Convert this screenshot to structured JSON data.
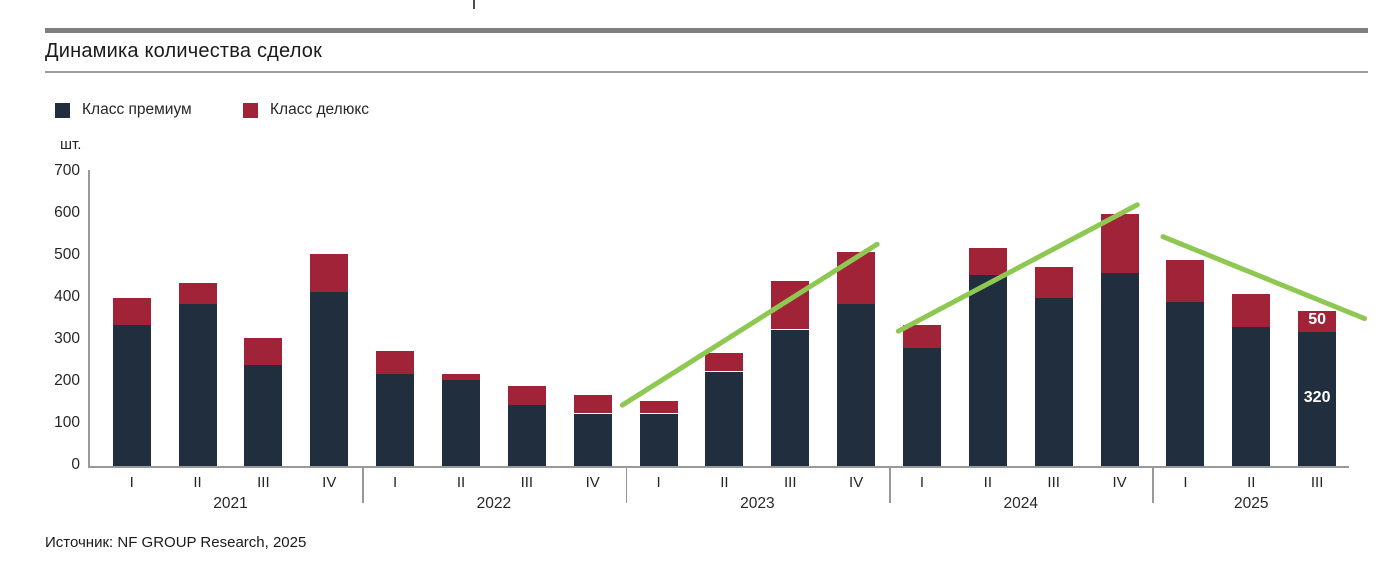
{
  "title": "Динамика количества сделок",
  "source": "Источник: NF GROUP Research, 2025",
  "colors": {
    "premium": "#202e3d",
    "deluxe": "#a12338",
    "trend": "#8ec852",
    "axis": "#999999",
    "divider_thick": "#7f7f7f",
    "divider_thin": "#9c9c9c",
    "text": "#262626"
  },
  "chart_data": {
    "type": "bar",
    "stacked": true,
    "title": "Динамика количества сделок",
    "ylabel": "шт.",
    "xlabel": "",
    "ylim": [
      0,
      700
    ],
    "yticks": [
      0,
      100,
      200,
      300,
      400,
      500,
      600,
      700
    ],
    "grid": false,
    "legend_position": "top-left",
    "series": [
      {
        "name": "Класс премиум",
        "color": "#202e3d"
      },
      {
        "name": "Класс делюкс",
        "color": "#a12338"
      }
    ],
    "groups": [
      {
        "year": "2021",
        "quarters": [
          {
            "label": "I",
            "premium": 335,
            "deluxe": 65
          },
          {
            "label": "II",
            "premium": 385,
            "deluxe": 50
          },
          {
            "label": "III",
            "premium": 240,
            "deluxe": 65
          },
          {
            "label": "IV",
            "premium": 415,
            "deluxe": 90
          }
        ]
      },
      {
        "year": "2022",
        "quarters": [
          {
            "label": "I",
            "premium": 220,
            "deluxe": 55
          },
          {
            "label": "II",
            "premium": 205,
            "deluxe": 15
          },
          {
            "label": "III",
            "premium": 145,
            "deluxe": 45
          },
          {
            "label": "IV",
            "premium": 125,
            "deluxe": 45
          }
        ]
      },
      {
        "year": "2023",
        "quarters": [
          {
            "label": "I",
            "premium": 125,
            "deluxe": 30
          },
          {
            "label": "II",
            "premium": 225,
            "deluxe": 45
          },
          {
            "label": "III",
            "premium": 325,
            "deluxe": 115
          },
          {
            "label": "IV",
            "premium": 385,
            "deluxe": 125
          }
        ]
      },
      {
        "year": "2024",
        "quarters": [
          {
            "label": "I",
            "premium": 280,
            "deluxe": 55
          },
          {
            "label": "II",
            "premium": 455,
            "deluxe": 65
          },
          {
            "label": "III",
            "premium": 400,
            "deluxe": 75
          },
          {
            "label": "IV",
            "premium": 460,
            "deluxe": 140
          }
        ]
      },
      {
        "year": "2025",
        "quarters": [
          {
            "label": "I",
            "premium": 390,
            "deluxe": 100
          },
          {
            "label": "II",
            "premium": 330,
            "deluxe": 80
          },
          {
            "label": "III",
            "premium": 320,
            "deluxe": 50,
            "premium_label": "320",
            "deluxe_label": "50"
          }
        ]
      }
    ],
    "trend_lines": [
      {
        "from": {
          "pos": 7.45,
          "value": 145
        },
        "to": {
          "pos": 11.32,
          "value": 528
        }
      },
      {
        "from": {
          "pos": 11.64,
          "value": 321
        },
        "to": {
          "pos": 15.27,
          "value": 622
        }
      },
      {
        "from": {
          "pos": 15.66,
          "value": 546
        },
        "to": {
          "pos": 18.72,
          "value": 351
        }
      }
    ]
  }
}
